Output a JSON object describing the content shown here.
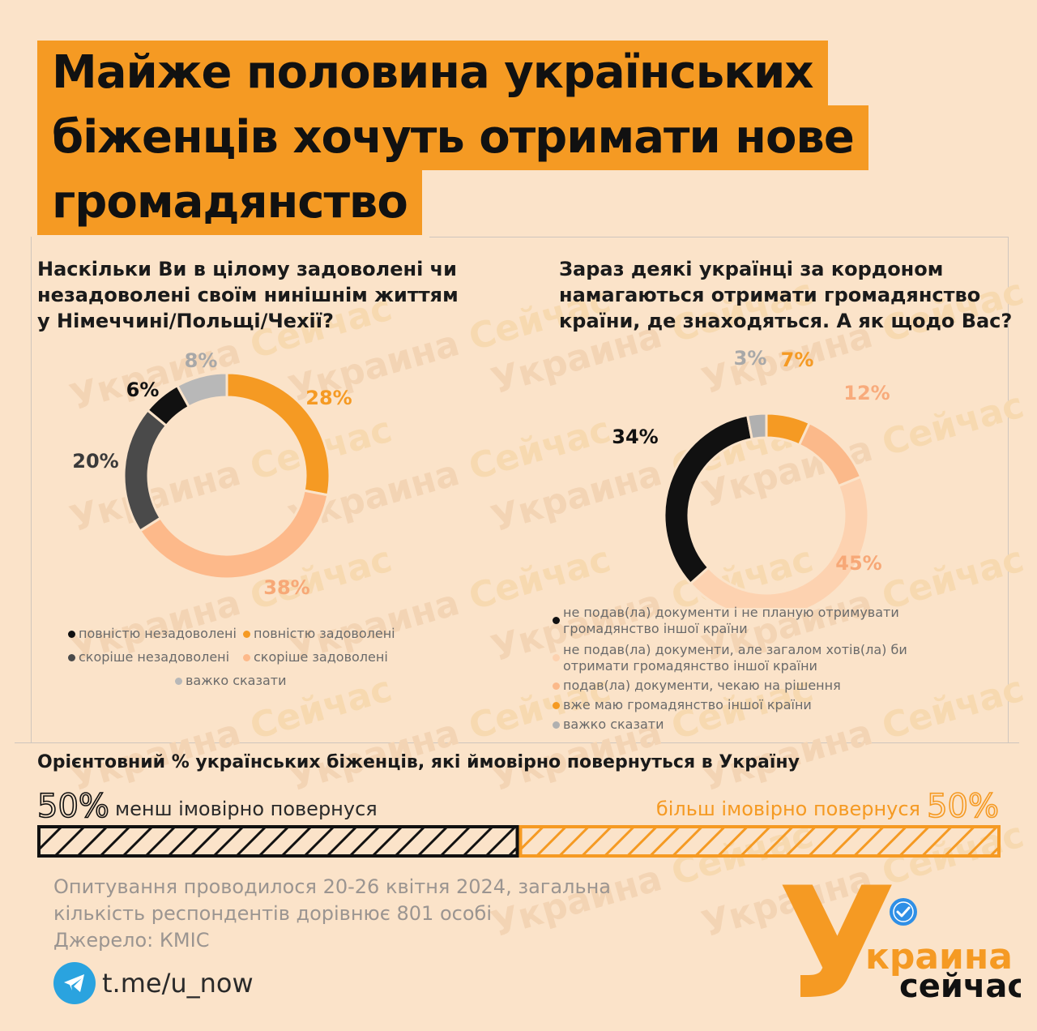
{
  "title_lines": [
    "Майже половина українських",
    "біженців хочуть отримати нове",
    "громадянство"
  ],
  "watermark": {
    "word1": "Украина",
    "word2": "Сейчас"
  },
  "chart1": {
    "question_lines": [
      "Наскільки Ви в цілому задоволені чи",
      "незадоволені своїм нинішнім життям",
      "у Німеччині/Польщі/Чехії?"
    ],
    "legend": [
      "повністю незадоволені",
      "повністю задоволені",
      "скоріше незадоволені",
      "скоріше задоволені",
      "важко сказати"
    ]
  },
  "chart2": {
    "question_lines": [
      "Зараз деякі українці за кордоном",
      "намагаються отримати громадянство",
      "країни, де знаходяться. А як щодо Вас?"
    ],
    "legend": [
      [
        "не подав(ла) документи і не планую отримувати",
        "громадянство іншої країни"
      ],
      [
        "не подав(ла) документи, але загалом хотів(ла) би",
        "отримати громадянство іншої країни"
      ],
      [
        "подав(ла) документи, чекаю на рішення"
      ],
      [
        "вже маю громадянство іншої країни"
      ],
      [
        "важко сказати"
      ]
    ]
  },
  "chart_data": [
    {
      "type": "pie",
      "title": "Наскільки Ви в цілому задоволені чи незадоволені своїм нинішнім життям у Німеччині/Польщі/Чехії?",
      "categories": [
        "повністю задоволені",
        "скоріше задоволені",
        "скоріше незадоволені",
        "повністю незадоволені",
        "важко сказати"
      ],
      "values": [
        28,
        38,
        20,
        6,
        8
      ],
      "labels": [
        "28%",
        "38%",
        "20%",
        "6%",
        "8%"
      ],
      "colors": [
        "#f59a23",
        "#fdb98a",
        "#4a4a4a",
        "#111111",
        "#b8b8b8"
      ],
      "label_colors": [
        "#f59a23",
        "#f7a877",
        "#3a3a3a",
        "#111111",
        "#a8a8a8"
      ]
    },
    {
      "type": "pie",
      "title": "Зараз деякі українці за кордоном намагаються отримати громадянство країни, де знаходяться. А як щодо Вас?",
      "categories": [
        "вже маю громадянство іншої країни",
        "подав(ла) документи, чекаю на рішення",
        "не подав(ла) документи, але загалом хотів(ла) би отримати громадянство іншої країни",
        "не подав(ла) документи і не планую отримувати громадянство іншої країни",
        "важко сказати"
      ],
      "values": [
        7,
        12,
        45,
        34,
        3
      ],
      "labels": [
        "7%",
        "12%",
        "45%",
        "34%",
        "3%"
      ],
      "colors": [
        "#f59a23",
        "#fbb98a",
        "#fdd2b0",
        "#111111",
        "#b0b0b0"
      ],
      "label_colors": [
        "#f59a23",
        "#f8ab7c",
        "#f7a877",
        "#111111",
        "#a8a8a8"
      ]
    },
    {
      "type": "bar",
      "title": "Орієнтовний % українських біженців, які ймовірно повернуться в Україну",
      "categories": [
        "менш імовірно повернуся",
        "більш імовірно повернуся"
      ],
      "values": [
        50,
        50
      ],
      "labels": [
        "50%",
        "50%"
      ],
      "colors": [
        "#111111",
        "#f59a23"
      ]
    }
  ],
  "footer": {
    "survey_lines": [
      "Опитування проводилося 20-26 квітня 2024, загальна",
      "кількість респондентів дорівнює 801 особі",
      "Джерело: КМІС"
    ],
    "link": "t.me/u_now"
  },
  "logo": {
    "letter": "У",
    "word1": "краина",
    "word2": "сейчас"
  }
}
